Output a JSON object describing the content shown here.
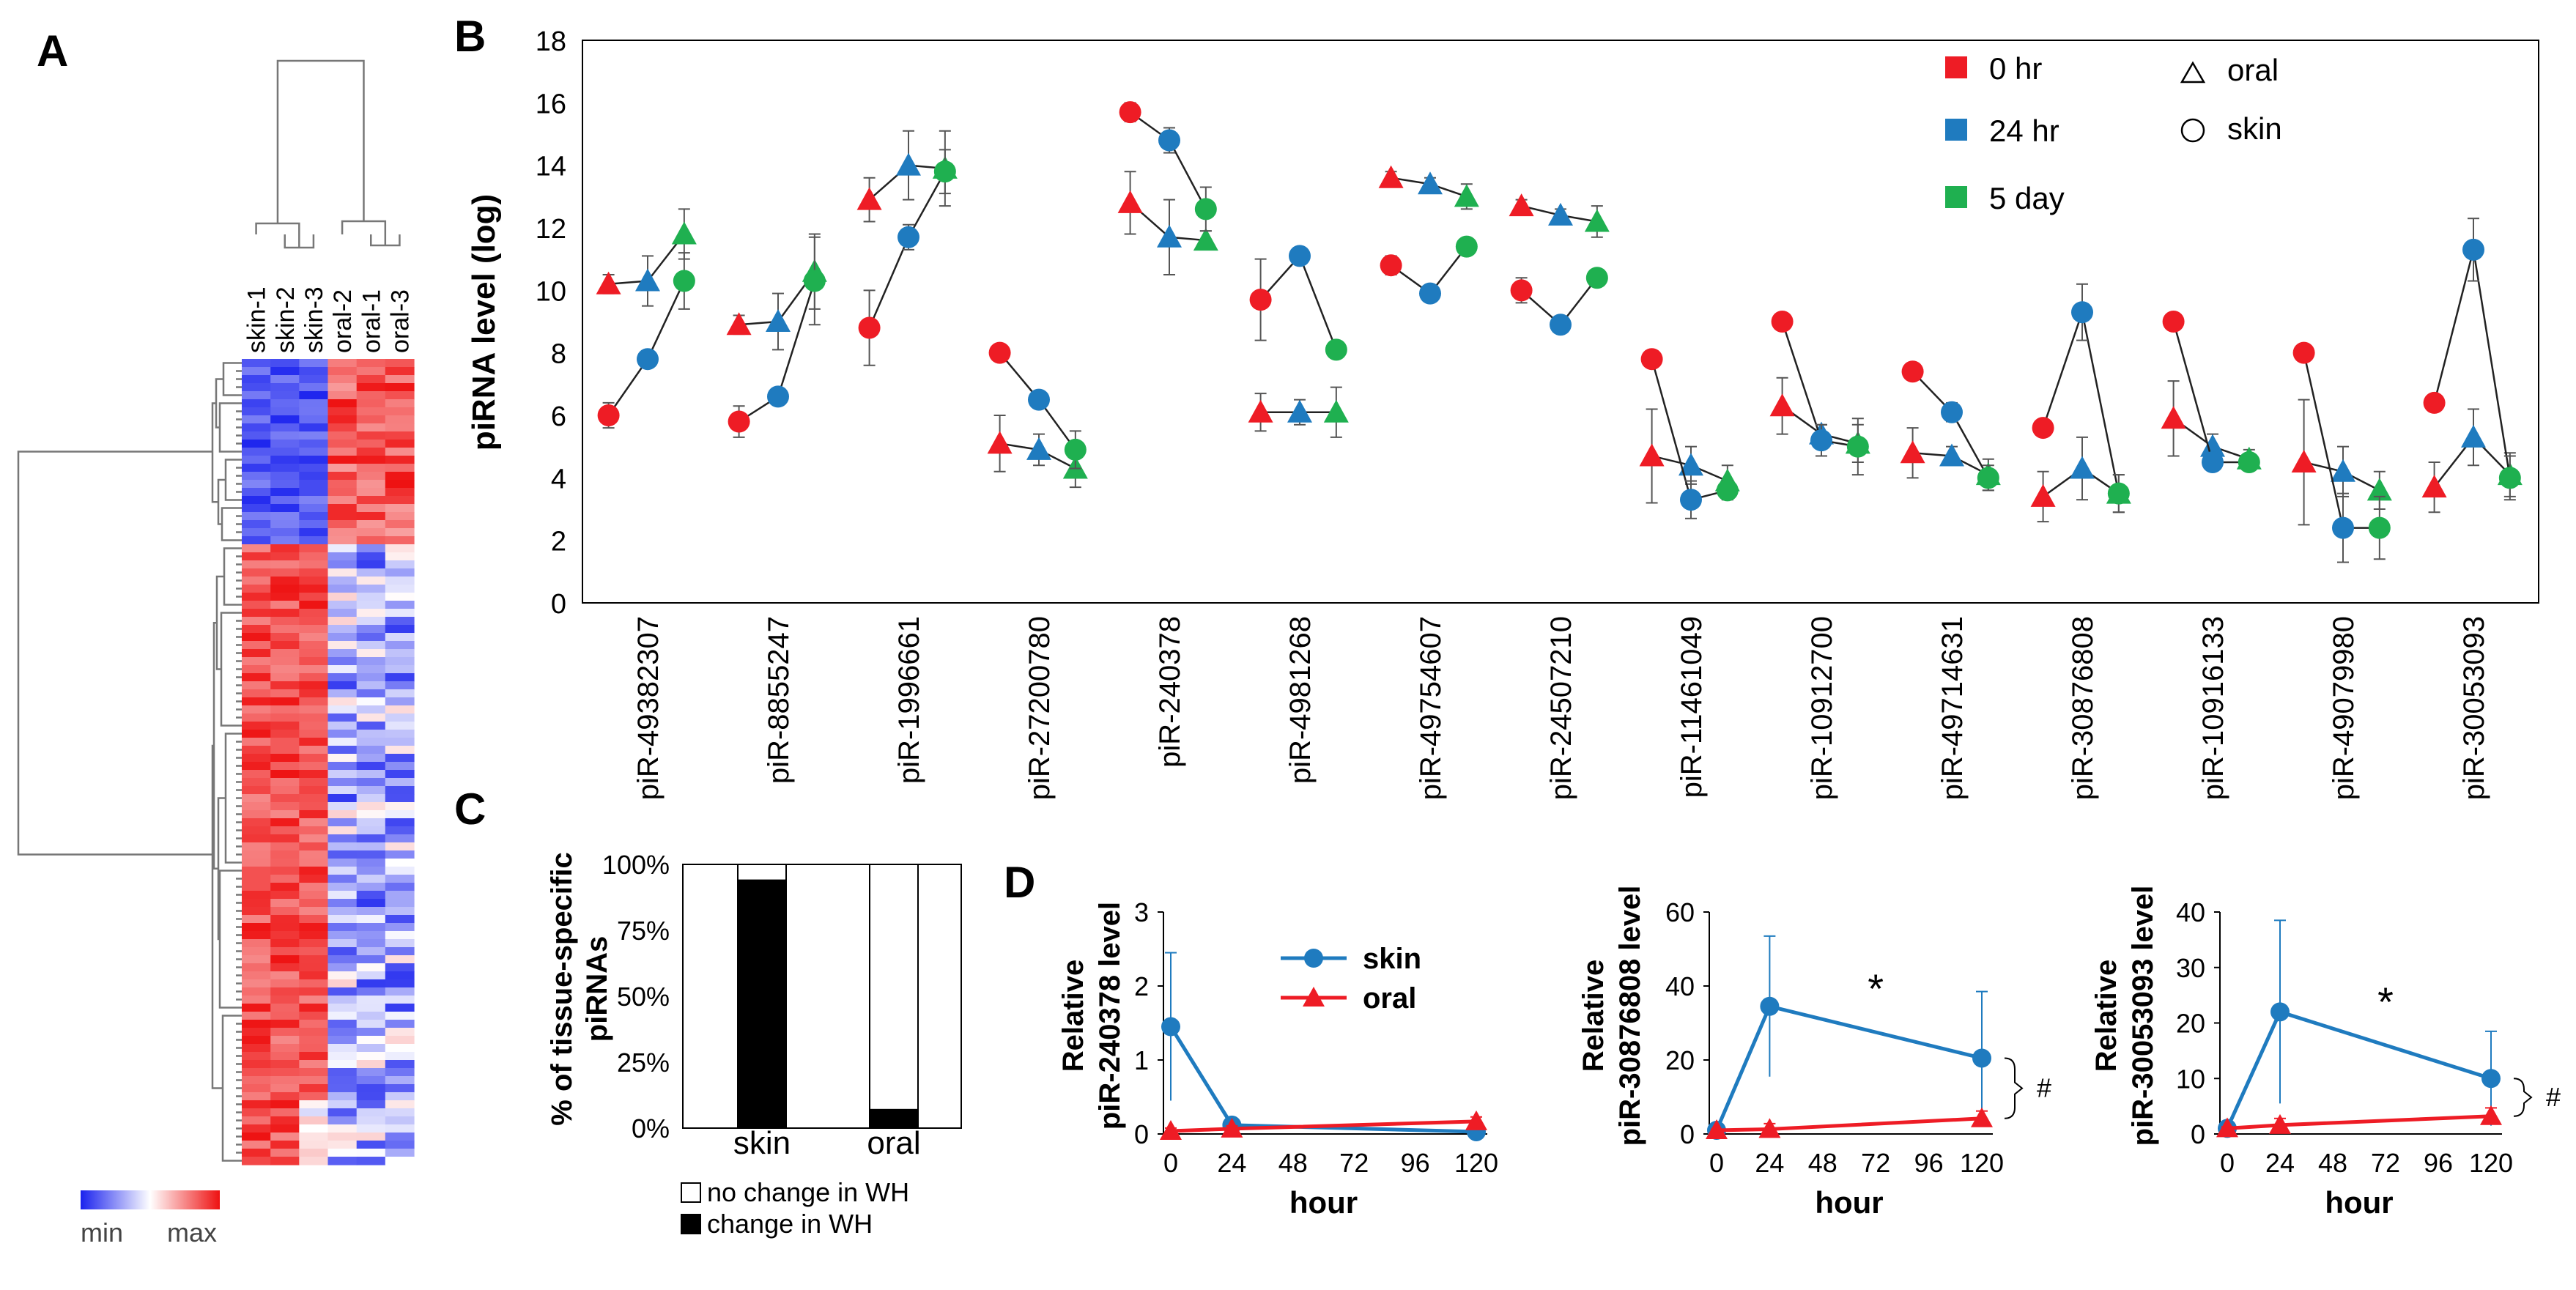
{
  "panel_labels": {
    "A": "A",
    "B": "B",
    "C": "C",
    "D": "D"
  },
  "colors": {
    "red": "#ee1c25",
    "blue": "#1f7bbf",
    "green": "#1fb050",
    "heat_min": "#1a22ee",
    "heat_mid": "#ffffff",
    "heat_max": "#ee1111"
  },
  "chart_data": [
    {
      "id": "A",
      "type": "heatmap",
      "title": "",
      "columns": [
        "skin-1",
        "skin-2",
        "skin-3",
        "oral-2",
        "oral-1",
        "oral-3"
      ],
      "colorbar": {
        "min_label": "min",
        "max_label": "max"
      },
      "cluster_1_rows": 23,
      "cluster_2_rows": 77,
      "note": "top cluster higher in oral, bottom cluster higher in skin"
    },
    {
      "id": "B",
      "type": "scatter",
      "ylabel": "piRNA level (log)",
      "ylim": [
        0,
        18
      ],
      "yticks": [
        0,
        2,
        4,
        6,
        8,
        10,
        12,
        14,
        16,
        18
      ],
      "categories": [
        "piR-49382307",
        "piR-8855247",
        "piR-1996661",
        "piR-27200780",
        "piR-240378",
        "piR-4981268",
        "piR-49754607",
        "piR-24507210",
        "piR-11461049",
        "piR-10912700",
        "piR-49714631",
        "piR-30876808",
        "piR-10916133",
        "piR-49079980",
        "piR-30053093"
      ],
      "legend": {
        "time": [
          "0 hr",
          "24 hr",
          "5 day"
        ],
        "tissue": [
          "oral",
          "skin"
        ]
      },
      "series": [
        {
          "name": "oral",
          "marker": "triangle",
          "values": [
            [
              10.2,
              10.3,
              11.8
            ],
            [
              8.9,
              9.0,
              10.6
            ],
            [
              12.9,
              14.0,
              13.9
            ],
            [
              5.1,
              4.9,
              4.3
            ],
            [
              12.8,
              11.7,
              11.6
            ],
            [
              6.1,
              6.1,
              6.1
            ],
            [
              13.6,
              13.4,
              13.0
            ],
            [
              12.7,
              12.4,
              12.2
            ],
            [
              4.7,
              4.4,
              3.9
            ],
            [
              6.3,
              5.4,
              5.1
            ],
            [
              4.8,
              4.7,
              4.1
            ],
            [
              3.4,
              4.3,
              3.5
            ],
            [
              5.9,
              5.0,
              4.6
            ],
            [
              4.5,
              4.2,
              3.6
            ],
            [
              3.7,
              5.3,
              4.1
            ]
          ],
          "errors": [
            [
              0.3,
              0.8,
              0.8
            ],
            [
              0.3,
              0.9,
              1.2
            ],
            [
              0.7,
              1.1,
              1.2
            ],
            [
              0.9,
              0.5,
              0.6
            ],
            [
              1.0,
              1.2,
              0.3
            ],
            [
              0.6,
              0.4,
              0.8
            ],
            [
              0.2,
              0.2,
              0.4
            ],
            [
              0.2,
              0.2,
              0.5
            ],
            [
              1.5,
              0.6,
              0.5
            ],
            [
              0.9,
              0.3,
              0.6
            ],
            [
              0.8,
              0.3,
              0.5
            ],
            [
              0.8,
              1.0,
              0.6
            ],
            [
              1.2,
              0.4,
              0.3
            ],
            [
              2.0,
              0.8,
              0.6
            ],
            [
              0.8,
              0.9,
              0.7
            ]
          ]
        },
        {
          "name": "skin",
          "marker": "circle",
          "values": [
            [
              6.0,
              7.8,
              10.3
            ],
            [
              5.8,
              6.6,
              10.3
            ],
            [
              8.8,
              11.7,
              13.8
            ],
            [
              8.0,
              6.5,
              4.9
            ],
            [
              15.7,
              14.8,
              12.6
            ],
            [
              9.7,
              11.1,
              8.1
            ],
            [
              10.8,
              9.9,
              11.4
            ],
            [
              10.0,
              8.9,
              10.4
            ],
            [
              7.8,
              3.3,
              3.6
            ],
            [
              9.0,
              5.2,
              5.0
            ],
            [
              7.4,
              6.1,
              4.0
            ],
            [
              5.6,
              9.3,
              3.5
            ],
            [
              9.0,
              4.5,
              4.5
            ],
            [
              8.0,
              2.4,
              2.4
            ],
            [
              6.4,
              11.3,
              4.0
            ]
          ],
          "errors": [
            [
              0.4,
              0.2,
              0.9
            ],
            [
              0.5,
              0.2,
              1.4
            ],
            [
              1.2,
              0.4,
              0.7
            ],
            [
              0.2,
              0.2,
              0.6
            ],
            [
              0.3,
              0.4,
              0.7
            ],
            [
              1.3,
              0.0,
              0.0
            ],
            [
              0.3,
              0.0,
              0.0
            ],
            [
              0.4,
              0.0,
              0.0
            ],
            [
              0.1,
              0.6,
              0.3
            ],
            [
              0.0,
              0.5,
              0.9
            ],
            [
              0.2,
              0.3,
              0.4
            ],
            [
              0.2,
              0.9,
              0.6
            ],
            [
              0.0,
              0.2,
              0.2
            ],
            [
              0.2,
              1.1,
              1.0
            ],
            [
              0.2,
              1.0,
              0.7
            ]
          ]
        }
      ]
    },
    {
      "id": "C",
      "type": "bar",
      "ylabel": "% of tissue-specific piRNAs",
      "categories": [
        "skin",
        "oral"
      ],
      "yticks": [
        "0%",
        "25%",
        "50%",
        "75%",
        "100%"
      ],
      "series": [
        {
          "name": "change in WH",
          "values": [
            94,
            7
          ]
        },
        {
          "name": "no change in WH",
          "values": [
            6,
            93
          ]
        }
      ]
    },
    {
      "id": "D1",
      "type": "line",
      "ylabel": "Relative piR-240378 level",
      "xlabel": "hour",
      "x": [
        0,
        24,
        120
      ],
      "xticks": [
        0,
        24,
        48,
        72,
        96,
        120
      ],
      "ylim": [
        0,
        3
      ],
      "yticks": [
        0,
        1,
        2,
        3
      ],
      "series": [
        {
          "name": "skin",
          "values": [
            1.45,
            0.12,
            0.03
          ],
          "err": [
            1.0,
            0.08,
            0.04
          ]
        },
        {
          "name": "oral",
          "values": [
            0.04,
            0.07,
            0.17
          ],
          "err": [
            0.04,
            0.04,
            0.06
          ]
        }
      ],
      "legend": [
        "skin",
        "oral"
      ],
      "annotation": ""
    },
    {
      "id": "D2",
      "type": "line",
      "ylabel": "Relative piR-30876808 level",
      "xlabel": "hour",
      "x": [
        0,
        24,
        120
      ],
      "xticks": [
        0,
        24,
        48,
        72,
        96,
        120
      ],
      "ylim": [
        0,
        60
      ],
      "yticks": [
        0,
        20,
        40,
        60
      ],
      "series": [
        {
          "name": "skin",
          "values": [
            1.0,
            34.5,
            20.5
          ],
          "err": [
            0.5,
            19,
            18
          ]
        },
        {
          "name": "oral",
          "values": [
            1.0,
            1.3,
            4.2
          ],
          "err": [
            0.3,
            1.5,
            2.0
          ]
        }
      ],
      "annotation": "*",
      "bracket_label": "#"
    },
    {
      "id": "D3",
      "type": "line",
      "ylabel": "Relative piR-30053093 level",
      "xlabel": "hour",
      "x": [
        0,
        24,
        120
      ],
      "xticks": [
        0,
        24,
        48,
        72,
        96,
        120
      ],
      "ylim": [
        0,
        40
      ],
      "yticks": [
        0,
        10,
        20,
        30,
        40
      ],
      "series": [
        {
          "name": "skin",
          "values": [
            1.0,
            22.0,
            10.0
          ],
          "err": [
            0.3,
            16.5,
            8.5
          ]
        },
        {
          "name": "oral",
          "values": [
            1.0,
            1.6,
            3.2
          ],
          "err": [
            0.3,
            1.2,
            1.5
          ]
        }
      ],
      "annotation": "*",
      "bracket_label": "#"
    }
  ]
}
